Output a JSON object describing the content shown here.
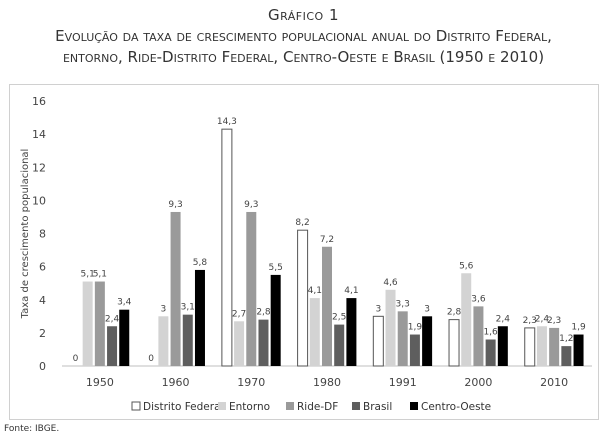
{
  "header": {
    "line1": "Gráfico 1",
    "line2": "Evolução da taxa de crescimento populacional anual do Distrito Federal,",
    "line3": "entorno, Ride-Distrito Federal, Centro-Oeste e Brasil (1950 e 2010)"
  },
  "source": "Fonte: IBGE.",
  "chart_data": {
    "type": "bar",
    "title": "",
    "xlabel": "",
    "ylabel": "Taxa de crescimento populacional",
    "ylim": [
      0,
      16
    ],
    "yticks": [
      0,
      2,
      4,
      6,
      8,
      10,
      12,
      14,
      16
    ],
    "grid": false,
    "legend_position": "bottom",
    "categories": [
      "1950",
      "1960",
      "1970",
      "1980",
      "1991",
      "2000",
      "2010"
    ],
    "series": [
      {
        "name": "Distrito Federal",
        "color": "#ffffff",
        "stroke": "#555555",
        "values": [
          0,
          0,
          14.3,
          8.2,
          3,
          2.8,
          2.3
        ],
        "labels": [
          "0",
          "0",
          "14,3",
          "8,2",
          "3",
          "2,8",
          "2,3"
        ]
      },
      {
        "name": "Entorno",
        "color": "#d3d3d3",
        "stroke": "none",
        "values": [
          5.1,
          3,
          2.7,
          4.1,
          4.6,
          5.6,
          2.4
        ],
        "labels": [
          "5,1",
          "3",
          "2,7",
          "4,1",
          "4,6",
          "5,6",
          "2,4"
        ]
      },
      {
        "name": "Ride-DF",
        "color": "#9a9a9a",
        "stroke": "none",
        "values": [
          5.1,
          9.3,
          9.3,
          7.2,
          3.3,
          3.6,
          2.3
        ],
        "labels": [
          "5,1",
          "9,3",
          "9,3",
          "7,2",
          "3,3",
          "3,6",
          "2,3"
        ]
      },
      {
        "name": "Brasil",
        "color": "#5e5e5e",
        "stroke": "none",
        "values": [
          2.4,
          3.1,
          2.8,
          2.5,
          1.9,
          1.6,
          1.2
        ],
        "labels": [
          "2,4",
          "3,1",
          "2,8",
          "2,5",
          "1,9",
          "1,6",
          "1,2"
        ]
      },
      {
        "name": "Centro-Oeste",
        "color": "#000000",
        "stroke": "none",
        "values": [
          3.4,
          5.8,
          5.5,
          4.1,
          3,
          2.4,
          1.9
        ],
        "labels": [
          "3,4",
          "5,8",
          "5,5",
          "4,1",
          "3",
          "2,4",
          "1,9"
        ]
      }
    ]
  }
}
